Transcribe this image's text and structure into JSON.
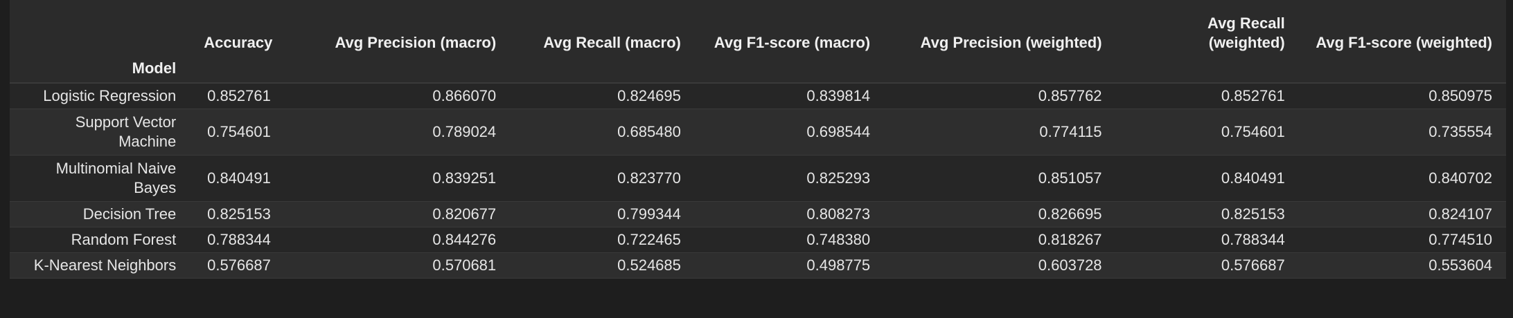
{
  "table": {
    "columns": [
      "Accuracy",
      "Avg Precision (macro)",
      "Avg Recall (macro)",
      "Avg F1-score (macro)",
      "Avg Precision (weighted)",
      "Avg Recall (weighted)",
      "Avg F1-score (weighted)"
    ],
    "index_name": "Model",
    "rows": [
      {
        "model": "Logistic Regression",
        "values": [
          "0.852761",
          "0.866070",
          "0.824695",
          "0.839814",
          "0.857762",
          "0.852761",
          "0.850975"
        ]
      },
      {
        "model": "Support Vector Machine",
        "values": [
          "0.754601",
          "0.789024",
          "0.685480",
          "0.698544",
          "0.774115",
          "0.754601",
          "0.735554"
        ]
      },
      {
        "model": "Multinomial Naive Bayes",
        "values": [
          "0.840491",
          "0.839251",
          "0.823770",
          "0.825293",
          "0.851057",
          "0.840491",
          "0.840702"
        ]
      },
      {
        "model": "Decision Tree",
        "values": [
          "0.825153",
          "0.820677",
          "0.799344",
          "0.808273",
          "0.826695",
          "0.825153",
          "0.824107"
        ]
      },
      {
        "model": "Random Forest",
        "values": [
          "0.788344",
          "0.844276",
          "0.722465",
          "0.748380",
          "0.818267",
          "0.788344",
          "0.774510"
        ]
      },
      {
        "model": "K-Nearest Neighbors",
        "values": [
          "0.576687",
          "0.570681",
          "0.524685",
          "0.498775",
          "0.603728",
          "0.576687",
          "0.553604"
        ]
      }
    ]
  },
  "colors": {
    "background": "#1e1e1e",
    "header_bg": "#2b2b2b",
    "row_odd": "#262626",
    "row_even": "#2e2e2e",
    "text": "#e6e6e6"
  }
}
